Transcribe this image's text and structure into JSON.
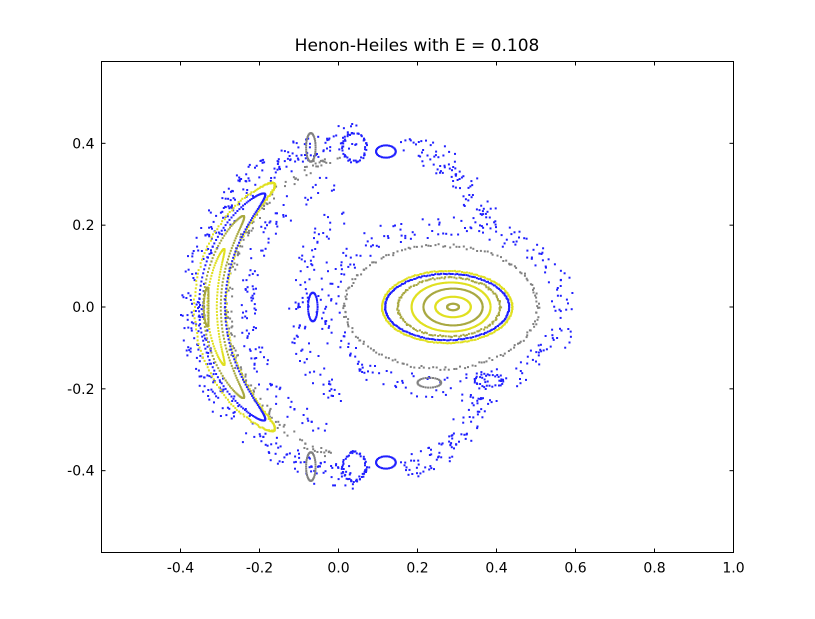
{
  "chart_data": {
    "type": "scatter",
    "title": "Henon-Heiles with E = 0.108",
    "xlabel": "",
    "ylabel": "",
    "xlim": [
      -0.6,
      1.0
    ],
    "ylim": [
      -0.6,
      0.6
    ],
    "xticks": [
      "-0.4",
      "-0.2",
      "0.0",
      "0.2",
      "0.4",
      "0.6",
      "0.8",
      "1.0"
    ],
    "xtick_values": [
      -0.4,
      -0.2,
      0.0,
      0.2,
      0.4,
      0.6,
      0.8,
      1.0
    ],
    "yticks": [
      "-0.4",
      "-0.2",
      "0.0",
      "0.2",
      "0.4"
    ],
    "ytick_values": [
      -0.4,
      -0.2,
      0.0,
      0.2,
      0.4
    ],
    "grid": false,
    "colors": {
      "blue": "#2020ff",
      "gray": "#808080",
      "yellow": "#e0e020",
      "olive": "#a8a840"
    },
    "orbits": [
      {
        "kind": "ellipse",
        "center": [
          0.29,
          0.0
        ],
        "rx": 0.015,
        "ry": 0.008,
        "color": "olive",
        "n": 40,
        "noise": 0
      },
      {
        "kind": "ellipse",
        "center": [
          0.29,
          0.0
        ],
        "rx": 0.045,
        "ry": 0.025,
        "color": "yellow",
        "n": 90,
        "noise": 0
      },
      {
        "kind": "ellipse",
        "center": [
          0.29,
          0.0
        ],
        "rx": 0.075,
        "ry": 0.045,
        "color": "olive",
        "n": 130,
        "noise": 0
      },
      {
        "kind": "ellipse",
        "center": [
          0.285,
          0.0
        ],
        "rx": 0.1,
        "ry": 0.06,
        "color": "yellow",
        "n": 170,
        "noise": 0
      },
      {
        "kind": "ellipse",
        "center": [
          0.28,
          0.0
        ],
        "rx": 0.13,
        "ry": 0.072,
        "color": "olive",
        "n": 150,
        "noise": 0.002
      },
      {
        "kind": "ellipse",
        "center": [
          0.275,
          0.0
        ],
        "rx": 0.165,
        "ry": 0.088,
        "color": "yellow",
        "n": 220,
        "noise": 0.001
      },
      {
        "kind": "ellipse",
        "center": [
          0.275,
          0.0
        ],
        "rx": 0.157,
        "ry": 0.081,
        "color": "blue",
        "n": 200,
        "noise": 0.001
      },
      {
        "kind": "ellipse",
        "center": [
          0.26,
          0.0
        ],
        "rx": 0.245,
        "ry": 0.15,
        "color": "gray",
        "n": 170,
        "noise": 0.004
      },
      {
        "kind": "ellipse",
        "center": [
          0.27,
          0.0
        ],
        "rx": 0.3,
        "ry": 0.2,
        "color": "blue",
        "n": 260,
        "noise": 0.03
      },
      {
        "kind": "ellipse",
        "center": [
          0.1,
          0.0
        ],
        "rx": 0.47,
        "ry": 0.42,
        "color": "blue",
        "n": 380,
        "noise": 0.03,
        "arc": [
          95,
          265
        ]
      },
      {
        "kind": "ellipse",
        "center": [
          0.12,
          0.0
        ],
        "rx": 0.3,
        "ry": 0.4,
        "color": "blue",
        "n": 90,
        "noise": 0.03,
        "arc": [
          30,
          80
        ]
      },
      {
        "kind": "ellipse",
        "center": [
          0.12,
          0.0
        ],
        "rx": 0.3,
        "ry": 0.4,
        "color": "blue",
        "n": 90,
        "noise": 0.03,
        "arc": [
          280,
          330
        ]
      },
      {
        "kind": "ellipse",
        "center": [
          0.1,
          0.0
        ],
        "rx": 0.38,
        "ry": 0.38,
        "color": "gray",
        "n": 160,
        "noise": 0.01,
        "arc": [
          105,
          255
        ]
      },
      {
        "kind": "ellipse",
        "center": [
          0.1,
          0.0
        ],
        "rx": 0.33,
        "ry": 0.33,
        "color": "blue",
        "n": 120,
        "noise": 0.02,
        "arc": [
          110,
          250
        ]
      },
      {
        "kind": "ellipse",
        "center": [
          0.1,
          0.0
        ],
        "rx": 0.2,
        "ry": 0.25,
        "color": "blue",
        "n": 90,
        "noise": 0.025,
        "arc": [
          120,
          240
        ]
      },
      {
        "kind": "ellipse",
        "center": [
          -0.065,
          0.0
        ],
        "rx": 0.012,
        "ry": 0.035,
        "color": "blue",
        "n": 40,
        "noise": 0
      },
      {
        "kind": "ellipse",
        "center": [
          -0.07,
          0.39
        ],
        "rx": 0.012,
        "ry": 0.035,
        "color": "gray",
        "n": 40,
        "noise": 0
      },
      {
        "kind": "ellipse",
        "center": [
          -0.07,
          -0.39
        ],
        "rx": 0.012,
        "ry": 0.035,
        "color": "gray",
        "n": 40,
        "noise": 0
      },
      {
        "kind": "ellipse",
        "center": [
          0.04,
          0.39
        ],
        "rx": 0.03,
        "ry": 0.035,
        "color": "blue",
        "n": 50,
        "noise": 0.003
      },
      {
        "kind": "ellipse",
        "center": [
          0.04,
          -0.39
        ],
        "rx": 0.03,
        "ry": 0.035,
        "color": "blue",
        "n": 50,
        "noise": 0.003
      },
      {
        "kind": "ellipse",
        "center": [
          0.12,
          0.38
        ],
        "rx": 0.025,
        "ry": 0.015,
        "color": "blue",
        "n": 35,
        "noise": 0
      },
      {
        "kind": "ellipse",
        "center": [
          0.12,
          -0.38
        ],
        "rx": 0.025,
        "ry": 0.015,
        "color": "blue",
        "n": 35,
        "noise": 0
      },
      {
        "kind": "ellipse",
        "center": [
          0.23,
          -0.185
        ],
        "rx": 0.03,
        "ry": 0.012,
        "color": "gray",
        "n": 30,
        "noise": 0
      },
      {
        "kind": "ellipse",
        "center": [
          0.38,
          -0.18
        ],
        "rx": 0.035,
        "ry": 0.015,
        "color": "blue",
        "n": 30,
        "noise": 0.003
      },
      {
        "kind": "banana",
        "center": [
          0.1,
          0.0
        ],
        "yscale": 0.9,
        "R": 0.425,
        "dr": 0.04,
        "theta": 180,
        "dtheta": 52,
        "color": "yellow",
        "n": 260,
        "noise": 0.002
      },
      {
        "kind": "banana",
        "center": [
          0.1,
          0.0
        ],
        "yscale": 0.9,
        "R": 0.42,
        "dr": 0.033,
        "theta": 180,
        "dtheta": 47,
        "color": "blue",
        "n": 200,
        "noise": 0
      },
      {
        "kind": "banana",
        "center": [
          0.1,
          0.0
        ],
        "yscale": 0.9,
        "R": 0.42,
        "dr": 0.022,
        "theta": 180,
        "dtheta": 36,
        "color": "olive",
        "n": 160,
        "noise": 0
      },
      {
        "kind": "banana",
        "center": [
          0.1,
          0.0
        ],
        "yscale": 0.9,
        "R": 0.42,
        "dr": 0.012,
        "theta": 180,
        "dtheta": 22,
        "color": "yellow",
        "n": 110,
        "noise": 0
      },
      {
        "kind": "banana",
        "center": [
          0.1,
          0.0
        ],
        "yscale": 0.9,
        "R": 0.435,
        "dr": 0.006,
        "theta": 180,
        "dtheta": 7,
        "color": "olive",
        "n": 50,
        "noise": 0
      }
    ]
  }
}
